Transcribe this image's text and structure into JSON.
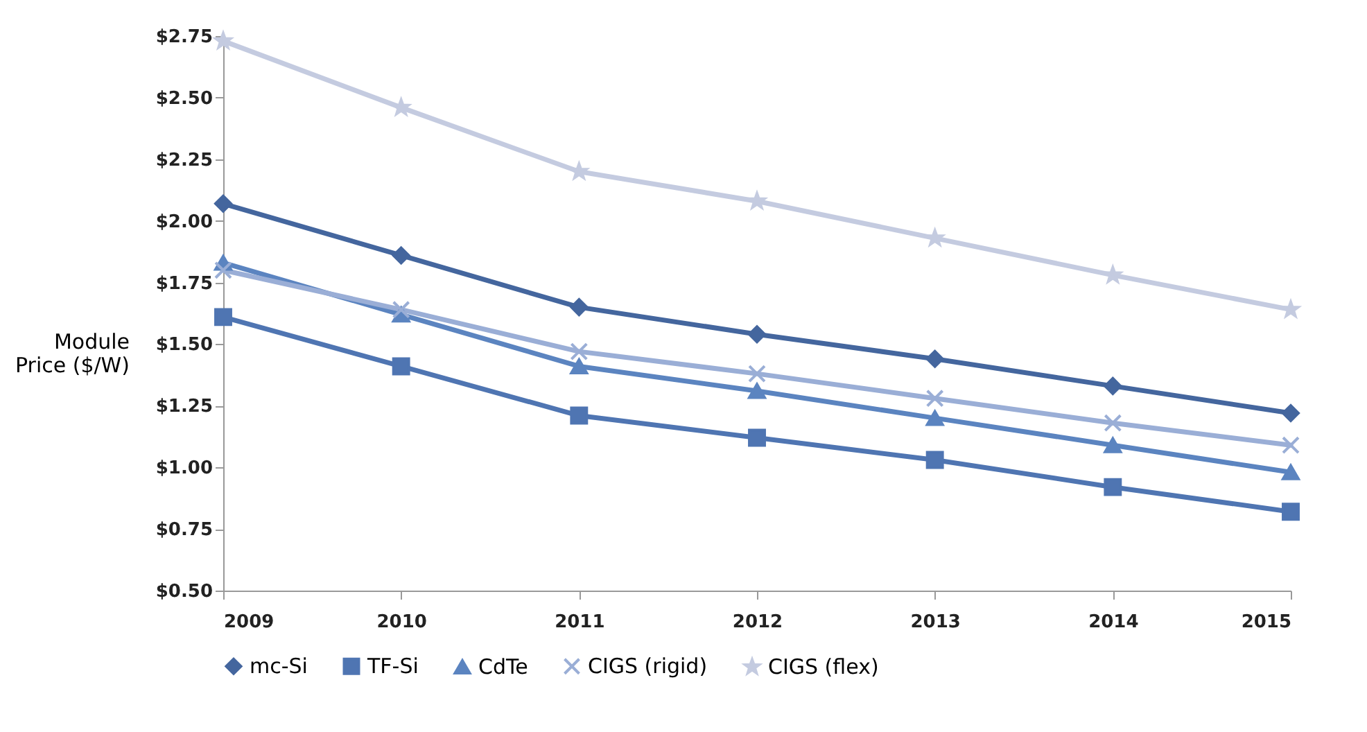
{
  "chart_data": {
    "type": "line",
    "ylabel": "Module Price ($/W)",
    "categories": [
      "2009",
      "2010",
      "2011",
      "2012",
      "2013",
      "2014",
      "2015"
    ],
    "ylim": [
      0.5,
      2.75
    ],
    "yticks": [
      {
        "value": 0.5,
        "label": "$0.50"
      },
      {
        "value": 0.75,
        "label": "$0.75"
      },
      {
        "value": 1.0,
        "label": "$1.00"
      },
      {
        "value": 1.25,
        "label": "$1.25"
      },
      {
        "value": 1.5,
        "label": "$1.50"
      },
      {
        "value": 1.75,
        "label": "$1.75"
      },
      {
        "value": 2.0,
        "label": "$2.00"
      },
      {
        "value": 2.25,
        "label": "$2.25"
      },
      {
        "value": 2.5,
        "label": "$2.50"
      },
      {
        "value": 2.75,
        "label": "$2.75"
      }
    ],
    "grid": false,
    "legend": "bottom",
    "line_style": "solid",
    "series": [
      {
        "name": "mc-Si",
        "color": "#44669e",
        "marker": "diamond",
        "values": [
          2.07,
          1.86,
          1.65,
          1.54,
          1.44,
          1.33,
          1.22
        ]
      },
      {
        "name": "TF-Si",
        "color": "#4f75b2",
        "marker": "square",
        "values": [
          1.61,
          1.41,
          1.21,
          1.12,
          1.03,
          0.92,
          0.82
        ]
      },
      {
        "name": "CdTe",
        "color": "#5b84c0",
        "marker": "triangle",
        "values": [
          1.83,
          1.62,
          1.41,
          1.31,
          1.2,
          1.09,
          0.98
        ]
      },
      {
        "name": "CIGS (rigid)",
        "color": "#9aaed6",
        "marker": "cross",
        "values": [
          1.8,
          1.64,
          1.47,
          1.38,
          1.28,
          1.18,
          1.09
        ]
      },
      {
        "name": "CIGS (flex)",
        "color": "#c4cbe0",
        "marker": "star",
        "values": [
          2.73,
          2.46,
          2.2,
          2.08,
          1.93,
          1.78,
          1.64
        ]
      }
    ]
  }
}
